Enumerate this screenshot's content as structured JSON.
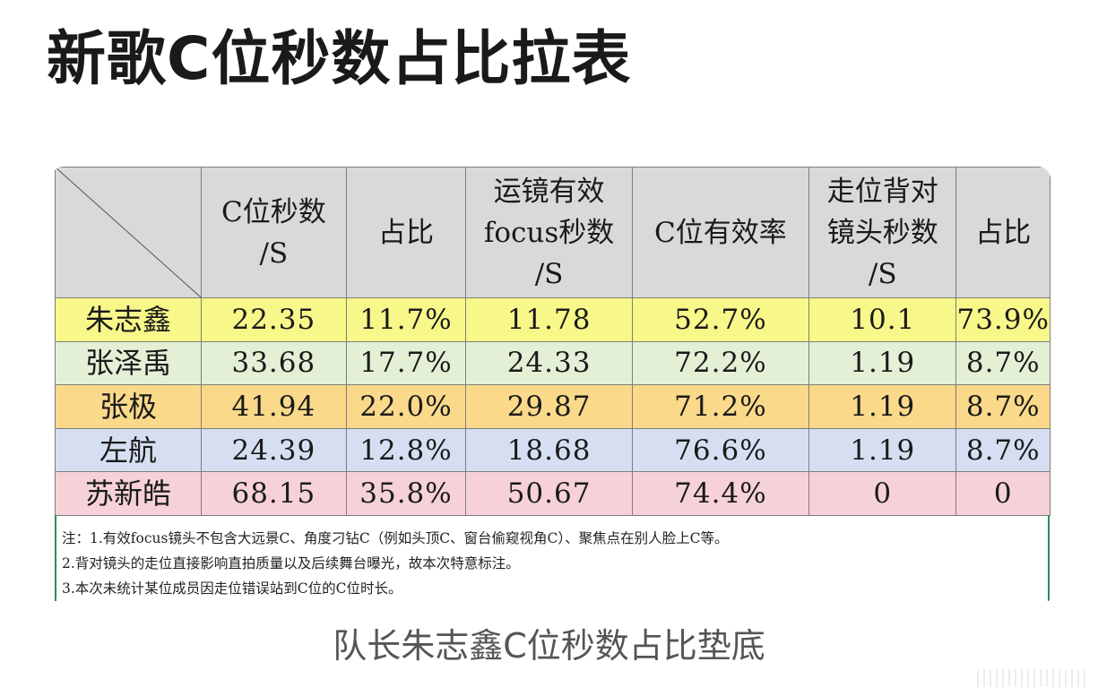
{
  "title": "新歌C位秒数占比拉表",
  "colors": {
    "header_bg": "#d9d9d9",
    "rows": [
      "#f7f78a",
      "#e3f0d6",
      "#fad98a",
      "#d6dff2",
      "#f6d2d8"
    ]
  },
  "table": {
    "headers": [
      "C位秒数/S",
      "占比",
      "运镜有效focus秒数/S",
      "C位有效率",
      "走位背对镜头秒数/S",
      "占比"
    ],
    "header_lines": [
      [
        "C位秒数",
        "/S"
      ],
      [
        "占比"
      ],
      [
        "运镜有效",
        "focus秒数",
        "/S"
      ],
      [
        "C位有效率"
      ],
      [
        "走位背对",
        "镜头秒数",
        "/S"
      ],
      [
        "占比"
      ]
    ],
    "rows": [
      {
        "name": "朱志鑫",
        "values": [
          "22.35",
          "11.7%",
          "11.78",
          "52.7%",
          "10.1",
          "73.9%"
        ]
      },
      {
        "name": "张泽禹",
        "values": [
          "33.68",
          "17.7%",
          "24.33",
          "72.2%",
          "1.19",
          "8.7%"
        ]
      },
      {
        "name": "张极",
        "values": [
          "41.94",
          "22.0%",
          "29.87",
          "71.2%",
          "1.19",
          "8.7%"
        ]
      },
      {
        "name": "左航",
        "values": [
          "24.39",
          "12.8%",
          "18.68",
          "76.6%",
          "1.19",
          "8.7%"
        ]
      },
      {
        "name": "苏新皓",
        "values": [
          "68.15",
          "35.8%",
          "50.67",
          "74.4%",
          "0",
          "0"
        ]
      }
    ]
  },
  "notes": [
    "注：1.有效focus镜头不包含大远景C、角度刁钻C（例如头顶C、窗台偷窥视角C）、聚焦点在别人脸上C等。",
    "2.背对镜头的走位直接影响直拍质量以及后续舞台曝光，故本次特意标注。",
    "3.本次未统计某位成员因走位错误站到C位的C位时长。"
  ],
  "caption": "队长朱志鑫C位秒数占比垫底"
}
